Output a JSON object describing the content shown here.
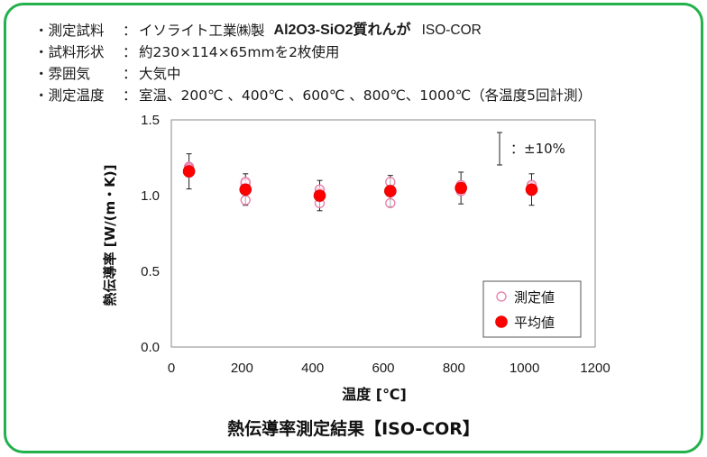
{
  "conditions": [
    {
      "label": "・測定試料",
      "sep": "：",
      "value": "イソライト工業㈱製",
      "value_bold": "Al2O3-SiO2質れんが",
      "value_code": "ISO-COR"
    },
    {
      "label": "・試料形状",
      "sep": "：",
      "value": "約230×114×65mmを2枚使用"
    },
    {
      "label": "・雰囲気",
      "sep": "：",
      "value": "大気中"
    },
    {
      "label": "・測定温度",
      "sep": "：",
      "value": "室温、200℃ 、400℃ 、600℃ 、800℃、1000℃（各温度5回計測）"
    }
  ],
  "caption": "熱伝導率測定結果【ISO-COR】",
  "colors": {
    "frame": "#22b14c",
    "measured": "#e87aa6",
    "average": "#ff0000"
  },
  "chart_data": {
    "type": "scatter",
    "xlabel": "温度 [℃]",
    "ylabel": "熱伝導率 [W/(m・K)]",
    "xlim": [
      0,
      1200
    ],
    "ylim": [
      0.0,
      1.5
    ],
    "xticks": [
      "0",
      "200",
      "400",
      "600",
      "800",
      "1000",
      "1200"
    ],
    "yticks": [
      "0.0",
      "0.5",
      "1.0",
      "1.5"
    ],
    "grid": false,
    "legend_position": "bottom-right",
    "error_note": "：±10%",
    "series": [
      {
        "name": "測定値",
        "marker": "open-circle",
        "points": [
          {
            "x": 50,
            "y": 1.19
          },
          {
            "x": 50,
            "y": 1.18
          },
          {
            "x": 50,
            "y": 1.17
          },
          {
            "x": 50,
            "y": 1.15
          },
          {
            "x": 210,
            "y": 0.97
          },
          {
            "x": 210,
            "y": 1.04
          },
          {
            "x": 210,
            "y": 1.06
          },
          {
            "x": 210,
            "y": 1.08
          },
          {
            "x": 210,
            "y": 1.09
          },
          {
            "x": 420,
            "y": 0.95
          },
          {
            "x": 420,
            "y": 0.99
          },
          {
            "x": 420,
            "y": 1.02
          },
          {
            "x": 420,
            "y": 1.04
          },
          {
            "x": 620,
            "y": 0.95
          },
          {
            "x": 620,
            "y": 1.02
          },
          {
            "x": 620,
            "y": 1.04
          },
          {
            "x": 620,
            "y": 1.09
          },
          {
            "x": 820,
            "y": 1.03
          },
          {
            "x": 820,
            "y": 1.05
          },
          {
            "x": 820,
            "y": 1.06
          },
          {
            "x": 820,
            "y": 1.07
          },
          {
            "x": 1020,
            "y": 1.03
          },
          {
            "x": 1020,
            "y": 1.05
          },
          {
            "x": 1020,
            "y": 1.06
          },
          {
            "x": 1020,
            "y": 1.07
          }
        ]
      },
      {
        "name": "平均値",
        "marker": "filled-circle",
        "points": [
          {
            "x": 50,
            "y": 1.16
          },
          {
            "x": 210,
            "y": 1.04
          },
          {
            "x": 420,
            "y": 1.0
          },
          {
            "x": 620,
            "y": 1.03
          },
          {
            "x": 820,
            "y": 1.05
          },
          {
            "x": 1020,
            "y": 1.04
          }
        ],
        "error_bars": [
          0.116,
          0.104,
          0.1,
          0.103,
          0.105,
          0.104
        ]
      }
    ]
  }
}
